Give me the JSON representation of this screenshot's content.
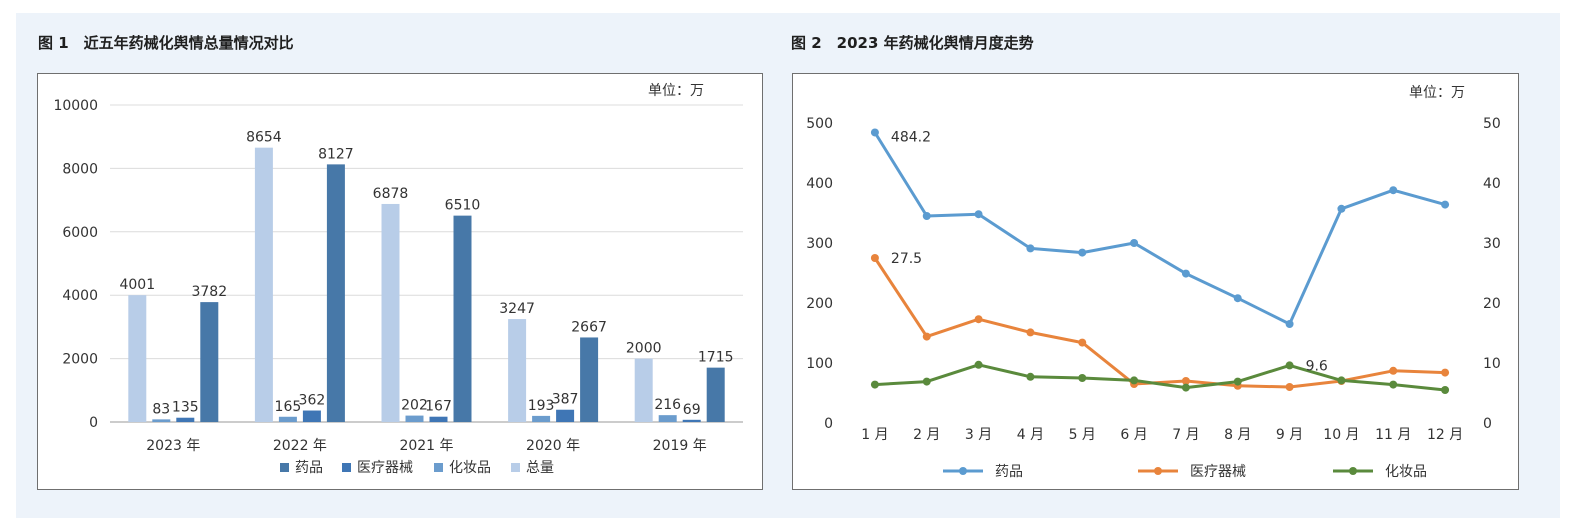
{
  "figures": [
    {
      "title": "图 1　近五年药械化舆情总量情况对比"
    },
    {
      "title": "图 2　2023 年药械化舆情月度走势"
    }
  ],
  "chart_data": [
    {
      "type": "bar",
      "unit_label": "单位：万",
      "categories": [
        "2023 年",
        "2022 年",
        "2021 年",
        "2020 年",
        "2019 年"
      ],
      "ylim": [
        0,
        10000
      ],
      "y_ticks": [
        0,
        2000,
        4000,
        6000,
        8000,
        10000
      ],
      "grid": true,
      "legend_position": "bottom",
      "series": [
        {
          "name": "总量",
          "color": "#b8cde8",
          "values": [
            4001,
            8654,
            6878,
            3247,
            2000
          ]
        },
        {
          "name": "化妆品",
          "color": "#6b9ccd",
          "values": [
            83,
            165,
            202,
            193,
            216
          ]
        },
        {
          "name": "医疗器械",
          "color": "#3f76b5",
          "values": [
            135,
            362,
            167,
            387,
            69
          ]
        },
        {
          "name": "药品",
          "color": "#4778a8",
          "values": [
            3782,
            8127,
            6510,
            2667,
            1715
          ]
        }
      ],
      "legend_order": [
        "药品",
        "医疗器械",
        "化妆品",
        "总量"
      ]
    },
    {
      "type": "line",
      "unit_label": "单位：万",
      "categories": [
        "1 月",
        "2 月",
        "3 月",
        "4 月",
        "5 月",
        "6 月",
        "7 月",
        "8 月",
        "9 月",
        "10 月",
        "11 月",
        "12 月"
      ],
      "y_left": {
        "ylim": [
          0,
          500
        ],
        "ticks": [
          0,
          100,
          200,
          300,
          400,
          500
        ]
      },
      "y_right": {
        "ylim": [
          0,
          50
        ],
        "ticks": [
          0,
          10,
          20,
          30,
          40,
          50
        ]
      },
      "grid": false,
      "legend_position": "bottom",
      "series": [
        {
          "name": "药品",
          "axis": "left",
          "color": "#5b9bd0",
          "values": [
            484.2,
            345,
            348,
            291,
            284,
            300,
            249,
            208,
            165,
            357,
            388,
            364
          ],
          "labels": [
            {
              "index": 0,
              "text": "484.2"
            }
          ]
        },
        {
          "name": "医疗器械",
          "axis": "right",
          "color": "#e8843c",
          "values": [
            27.5,
            14.4,
            17.3,
            15.1,
            13.4,
            6.5,
            7.0,
            6.2,
            6.0,
            7.0,
            8.7,
            8.4
          ],
          "labels": [
            {
              "index": 0,
              "text": "27.5"
            }
          ]
        },
        {
          "name": "化妆品",
          "axis": "right",
          "color": "#5a8a3c",
          "values": [
            6.4,
            6.9,
            9.7,
            7.7,
            7.5,
            7.1,
            5.9,
            6.9,
            9.6,
            7.1,
            6.4,
            5.5
          ],
          "labels": [
            {
              "index": 8,
              "text": "9.6"
            }
          ]
        }
      ]
    }
  ]
}
